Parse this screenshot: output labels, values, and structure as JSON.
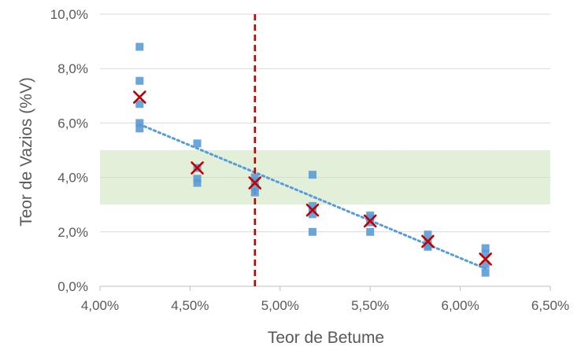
{
  "chart_data": {
    "type": "scatter",
    "xlabel": "Teor de Vazios (%V)",
    "xlabel_axis": "Teor de Betume",
    "ylabel": "Teor de Vazios (%V)",
    "x_axis": {
      "label": "Teor de Betume",
      "min": 4.0,
      "max": 6.5,
      "step": 0.5,
      "format": "percent_2dec"
    },
    "y_axis": {
      "label": "Teor de Vazios (%V)",
      "min": 0.0,
      "max": 10.0,
      "step": 2.0,
      "format": "percent_1dec"
    },
    "grid": "horizontal",
    "x_tick_labels": [
      "4,00%",
      "4,50%",
      "5,00%",
      "5,50%",
      "6,00%",
      "6,50%"
    ],
    "y_tick_labels": [
      "0,0%",
      "2,0%",
      "4,0%",
      "6,0%",
      "8,0%",
      "10,0%"
    ],
    "band": {
      "y_min": 3.0,
      "y_max": 5.0,
      "color": "#e2efd9"
    },
    "vertical_line": {
      "x": 4.86,
      "color": "#c00000",
      "style": "dashed"
    },
    "series": [
      {
        "kind": "samples",
        "marker": "square",
        "color": "#5b9bd5",
        "points": [
          [
            4.22,
            8.8
          ],
          [
            4.22,
            7.55
          ],
          [
            4.22,
            6.7
          ],
          [
            4.22,
            6.0
          ],
          [
            4.22,
            5.8
          ],
          [
            4.54,
            5.25
          ],
          [
            4.54,
            4.35
          ],
          [
            4.54,
            3.95
          ],
          [
            4.54,
            3.8
          ],
          [
            4.86,
            4.0
          ],
          [
            4.86,
            3.85
          ],
          [
            4.86,
            3.65
          ],
          [
            4.86,
            3.45
          ],
          [
            5.18,
            4.1
          ],
          [
            5.18,
            2.95
          ],
          [
            5.18,
            2.8
          ],
          [
            5.18,
            2.65
          ],
          [
            5.18,
            2.0
          ],
          [
            5.5,
            2.6
          ],
          [
            5.5,
            2.5
          ],
          [
            5.5,
            2.35
          ],
          [
            5.5,
            2.0
          ],
          [
            5.82,
            1.9
          ],
          [
            5.82,
            1.65
          ],
          [
            5.82,
            1.5
          ],
          [
            5.82,
            1.45
          ],
          [
            6.14,
            1.4
          ],
          [
            6.14,
            1.2
          ],
          [
            6.14,
            0.8
          ],
          [
            6.14,
            0.5
          ]
        ]
      },
      {
        "kind": "means",
        "marker": "x",
        "color": "#c00000",
        "points": [
          [
            4.22,
            6.95
          ],
          [
            4.54,
            4.35
          ],
          [
            4.86,
            3.8
          ],
          [
            5.18,
            2.8
          ],
          [
            5.5,
            2.4
          ],
          [
            5.82,
            1.65
          ],
          [
            6.14,
            1.0
          ]
        ]
      },
      {
        "kind": "trendline",
        "style": "dotted",
        "color": "#5b9bd5",
        "from": [
          4.22,
          5.95
        ],
        "to": [
          6.14,
          0.65
        ]
      }
    ]
  }
}
